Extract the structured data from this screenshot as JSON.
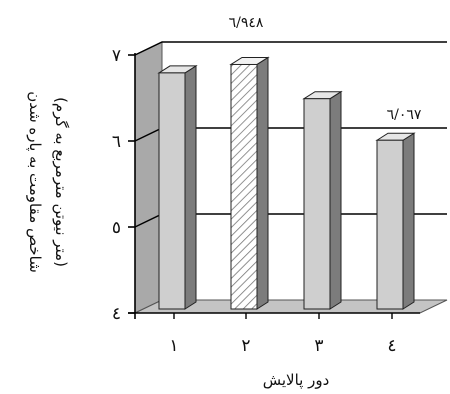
{
  "chart_data": {
    "type": "bar",
    "three_d": true,
    "title": "",
    "xlabel": "دور پالایش",
    "ylabel_line1": "شاخص مقاومت به پاره شدن",
    "ylabel_line2": "(متر نیوتن مترمربع به گرم)",
    "categories": [
      "١",
      "٢",
      "٣",
      "٤"
    ],
    "values": [
      6.85,
      6.948,
      6.55,
      6.067
    ],
    "value_labels": [
      "",
      "٦/٩٤٨",
      "",
      "٦/٠٦٧"
    ],
    "ylim": [
      4,
      7
    ],
    "yticks": [
      4,
      5,
      6,
      7
    ],
    "ytick_labels": [
      "٤",
      "٥",
      "٦",
      "٧"
    ],
    "grid": true,
    "colors": {
      "bar_front": "#cfcfcf",
      "bar_side": "#7c7c7c",
      "bar_top": "#e6e6e6",
      "wall": "#a9a9a9",
      "floor": "#c4c4c4",
      "highlight_pattern": "hatched",
      "highlight_index": 1
    }
  }
}
